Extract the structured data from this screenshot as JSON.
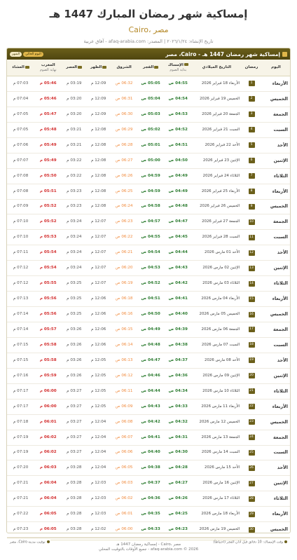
{
  "header": {
    "title": "إمساكية شهر رمضان المبارك 1447 هـ",
    "subtitle": "Cairo، مصر",
    "meta": "تاريخ الإنشاء: ٢٠٢٦/١/٢٤ | المصدر: afaq-arabia.com - آفاق عربية"
  },
  "card": {
    "title": "إمساكية شهر رمضان 1447 هـ - Cairo، مصر",
    "toggle_today": "اليوم الحالي",
    "toggle_all": "الشهر"
  },
  "columns": {
    "day": "اليوم",
    "ramadan": "رمضان",
    "gregorian": "التاريخ الميلادي",
    "imsak": "الإمساك",
    "imsak_sub": "بداية الصوم",
    "fajr": "الفجر",
    "sunrise": "الشروق",
    "dhuhr": "الظهر",
    "asr": "العصر",
    "maghrib": "المغرب",
    "maghrib_sub": "نهاية الصوم",
    "isha": "العشاء"
  },
  "rows": [
    {
      "day": "الأربعاء",
      "n": "1",
      "date": "الأربعاء 18 فبراير 2026",
      "imsak": "04:55 ص",
      "fajr": "05:05 ص",
      "sunrise": "06:32 ص",
      "dhuhr": "12:09 م",
      "asr": "03:19 م",
      "maghrib": "05:46 م",
      "isha": "07:03 م"
    },
    {
      "day": "الخميس",
      "n": "2",
      "date": "الخميس 19 فبراير 2026",
      "imsak": "04:54 ص",
      "fajr": "05:04 ص",
      "sunrise": "06:31 ص",
      "dhuhr": "12:09 م",
      "asr": "03:20 م",
      "maghrib": "05:46 م",
      "isha": "07:04 م"
    },
    {
      "day": "الجمعة",
      "n": "3",
      "date": "الجمعة 20 فبراير 2026",
      "imsak": "04:53 ص",
      "fajr": "05:03 ص",
      "sunrise": "06:30 ص",
      "dhuhr": "12:09 م",
      "asr": "03:20 م",
      "maghrib": "05:47 م",
      "isha": "07:05 م"
    },
    {
      "day": "السبت",
      "n": "4",
      "date": "السبت 21 فبراير 2026",
      "imsak": "04:52 ص",
      "fajr": "05:02 ص",
      "sunrise": "06:29 ص",
      "dhuhr": "12:08 م",
      "asr": "03:21 م",
      "maghrib": "05:48 م",
      "isha": "07:05 م"
    },
    {
      "day": "الأحد",
      "n": "5",
      "date": "الأحد 22 فبراير 2026",
      "imsak": "04:51 ص",
      "fajr": "05:01 ص",
      "sunrise": "06:28 ص",
      "dhuhr": "12:08 م",
      "asr": "03:21 م",
      "maghrib": "05:49 م",
      "isha": "07:06 م"
    },
    {
      "day": "الإثنين",
      "n": "6",
      "date": "الإثنين 23 فبراير 2026",
      "imsak": "04:50 ص",
      "fajr": "05:00 ص",
      "sunrise": "06:27 ص",
      "dhuhr": "12:08 م",
      "asr": "03:22 م",
      "maghrib": "05:49 م",
      "isha": "07:07 م"
    },
    {
      "day": "الثلاثاء",
      "n": "7",
      "date": "الثلاثاء 24 فبراير 2026",
      "imsak": "04:49 ص",
      "fajr": "04:59 ص",
      "sunrise": "06:26 ص",
      "dhuhr": "12:08 م",
      "asr": "03:22 م",
      "maghrib": "05:50 م",
      "isha": "07:08 م"
    },
    {
      "day": "الأربعاء",
      "n": "8",
      "date": "الأربعاء 25 فبراير 2026",
      "imsak": "04:49 ص",
      "fajr": "04:59 ص",
      "sunrise": "06:25 ص",
      "dhuhr": "12:08 م",
      "asr": "03:23 م",
      "maghrib": "05:51 م",
      "isha": "07:08 م"
    },
    {
      "day": "الخميس",
      "n": "9",
      "date": "الخميس 26 فبراير 2026",
      "imsak": "04:48 ص",
      "fajr": "04:58 ص",
      "sunrise": "06:24 ص",
      "dhuhr": "12:08 م",
      "asr": "03:23 م",
      "maghrib": "05:52 م",
      "isha": "07:09 م"
    },
    {
      "day": "الجمعة",
      "n": "10",
      "date": "الجمعة 27 فبراير 2026",
      "imsak": "04:47 ص",
      "fajr": "04:57 ص",
      "sunrise": "06:23 ص",
      "dhuhr": "12:07 م",
      "asr": "03:24 م",
      "maghrib": "05:52 م",
      "isha": "07:10 م"
    },
    {
      "day": "السبت",
      "n": "11",
      "date": "السبت 28 فبراير 2026",
      "imsak": "04:45 ص",
      "fajr": "04:55 ص",
      "sunrise": "06:22 ص",
      "dhuhr": "12:07 م",
      "asr": "03:24 م",
      "maghrib": "05:53 م",
      "isha": "07:10 م"
    },
    {
      "day": "الأحد",
      "n": "12",
      "date": "الأحد 01 مارس 2026",
      "imsak": "04:44 ص",
      "fajr": "04:54 ص",
      "sunrise": "06:21 ص",
      "dhuhr": "12:07 م",
      "asr": "03:24 م",
      "maghrib": "05:54 م",
      "isha": "07:11 م"
    },
    {
      "day": "الإثنين",
      "n": "13",
      "date": "الإثنين 02 مارس 2026",
      "imsak": "04:43 ص",
      "fajr": "04:53 ص",
      "sunrise": "06:20 ص",
      "dhuhr": "12:07 م",
      "asr": "03:24 م",
      "maghrib": "05:54 م",
      "isha": "07:12 م"
    },
    {
      "day": "الثلاثاء",
      "n": "14",
      "date": "الثلاثاء 03 مارس 2026",
      "imsak": "04:42 ص",
      "fajr": "04:52 ص",
      "sunrise": "06:19 ص",
      "dhuhr": "12:07 م",
      "asr": "03:25 م",
      "maghrib": "05:55 م",
      "isha": "07:12 م"
    },
    {
      "day": "الأربعاء",
      "n": "15",
      "date": "الأربعاء 04 مارس 2026",
      "imsak": "04:41 ص",
      "fajr": "04:51 ص",
      "sunrise": "06:18 ص",
      "dhuhr": "12:06 م",
      "asr": "03:25 م",
      "maghrib": "05:56 م",
      "isha": "07:13 م"
    },
    {
      "day": "الخميس",
      "n": "16",
      "date": "الخميس 05 مارس 2026",
      "imsak": "04:40 ص",
      "fajr": "04:50 ص",
      "sunrise": "06:16 ص",
      "dhuhr": "12:06 م",
      "asr": "03:25 م",
      "maghrib": "05:56 م",
      "isha": "07:14 م"
    },
    {
      "day": "الجمعة",
      "n": "17",
      "date": "الجمعة 06 مارس 2026",
      "imsak": "04:39 ص",
      "fajr": "04:49 ص",
      "sunrise": "06:15 ص",
      "dhuhr": "12:06 م",
      "asr": "03:26 م",
      "maghrib": "05:57 م",
      "isha": "07:14 م"
    },
    {
      "day": "السبت",
      "n": "18",
      "date": "السبت 07 مارس 2026",
      "imsak": "04:38 ص",
      "fajr": "04:48 ص",
      "sunrise": "06:14 ص",
      "dhuhr": "12:06 م",
      "asr": "03:26 م",
      "maghrib": "05:58 م",
      "isha": "07:15 م"
    },
    {
      "day": "الأحد",
      "n": "19",
      "date": "الأحد 08 مارس 2026",
      "imsak": "04:37 ص",
      "fajr": "04:47 ص",
      "sunrise": "06:13 ص",
      "dhuhr": "12:05 م",
      "asr": "03:26 م",
      "maghrib": "05:58 م",
      "isha": "07:15 م"
    },
    {
      "day": "الإثنين",
      "n": "20",
      "date": "الإثنين 09 مارس 2026",
      "imsak": "04:36 ص",
      "fajr": "04:46 ص",
      "sunrise": "06:12 ص",
      "dhuhr": "12:05 م",
      "asr": "03:26 م",
      "maghrib": "05:59 م",
      "isha": "07:16 م"
    },
    {
      "day": "الثلاثاء",
      "n": "21",
      "date": "الثلاثاء 10 مارس 2026",
      "imsak": "04:34 ص",
      "fajr": "04:44 ص",
      "sunrise": "06:11 ص",
      "dhuhr": "12:05 م",
      "asr": "03:27 م",
      "maghrib": "06:00 م",
      "isha": "07:17 م"
    },
    {
      "day": "الأربعاء",
      "n": "22",
      "date": "الأربعاء 11 مارس 2026",
      "imsak": "04:33 ص",
      "fajr": "04:43 ص",
      "sunrise": "06:09 ص",
      "dhuhr": "12:05 م",
      "asr": "03:27 م",
      "maghrib": "06:00 م",
      "isha": "07:17 م"
    },
    {
      "day": "الخميس",
      "n": "23",
      "date": "الخميس 12 مارس 2026",
      "imsak": "04:32 ص",
      "fajr": "04:42 ص",
      "sunrise": "06:08 ص",
      "dhuhr": "12:04 م",
      "asr": "03:27 م",
      "maghrib": "06:01 م",
      "isha": "07:18 م"
    },
    {
      "day": "الجمعة",
      "n": "24",
      "date": "الجمعة 13 مارس 2026",
      "imsak": "04:31 ص",
      "fajr": "04:41 ص",
      "sunrise": "06:07 ص",
      "dhuhr": "12:04 م",
      "asr": "03:27 م",
      "maghrib": "06:02 م",
      "isha": "07:19 م"
    },
    {
      "day": "السبت",
      "n": "25",
      "date": "السبت 14 مارس 2026",
      "imsak": "04:30 ص",
      "fajr": "04:40 ص",
      "sunrise": "06:06 ص",
      "dhuhr": "12:04 م",
      "asr": "03:27 م",
      "maghrib": "06:02 م",
      "isha": "07:19 م"
    },
    {
      "day": "الأحد",
      "n": "26",
      "date": "الأحد 15 مارس 2026",
      "imsak": "04:28 ص",
      "fajr": "04:38 ص",
      "sunrise": "06:05 ص",
      "dhuhr": "12:04 م",
      "asr": "03:28 م",
      "maghrib": "06:03 م",
      "isha": "07:20 م"
    },
    {
      "day": "الإثنين",
      "n": "27",
      "date": "الإثنين 16 مارس 2026",
      "imsak": "04:27 ص",
      "fajr": "04:37 ص",
      "sunrise": "06:03 ص",
      "dhuhr": "12:03 م",
      "asr": "03:28 م",
      "maghrib": "06:04 م",
      "isha": "07:21 م"
    },
    {
      "day": "الثلاثاء",
      "n": "28",
      "date": "الثلاثاء 17 مارس 2026",
      "imsak": "04:26 ص",
      "fajr": "04:36 ص",
      "sunrise": "06:02 ص",
      "dhuhr": "12:03 م",
      "asr": "03:28 م",
      "maghrib": "06:04 م",
      "isha": "07:21 م"
    },
    {
      "day": "الأربعاء",
      "n": "29",
      "date": "الأربعاء 18 مارس 2026",
      "imsak": "04:25 ص",
      "fajr": "04:35 ص",
      "sunrise": "06:01 ص",
      "dhuhr": "12:03 م",
      "asr": "03:28 م",
      "maghrib": "06:05 م",
      "isha": "07:22 م"
    },
    {
      "day": "الخميس",
      "n": "30",
      "date": "الخميس 19 مارس 2026",
      "imsak": "04:23 ص",
      "fajr": "04:33 ص",
      "sunrise": "06:00 ص",
      "dhuhr": "12:02 م",
      "asr": "03:28 م",
      "maghrib": "06:05 م",
      "isha": "07:23 م"
    }
  ],
  "notes": {
    "imsak_note": "وقت الإمساك: 10 دقائق قبل أذان الفجر (احتياطاً)",
    "timezone_note": "توقيت مدينة Cairo، مصر"
  },
  "footer": {
    "line1": "إمساكية رمضان 1447 هـ - Cairo، مصر",
    "line2": "جميع الأوقات بالتوقيت المحلي - afaq-arabia.com © 2026"
  }
}
